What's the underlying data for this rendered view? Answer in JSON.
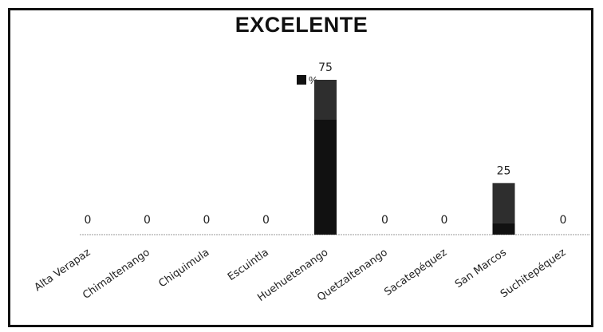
{
  "chart_data": {
    "type": "bar",
    "title": "EXCELENTE",
    "categories": [
      "Alta Verapaz",
      "Chimaltenango",
      "Chiquimula",
      "Escuintla",
      "Huehuetenango",
      "Quetzaltenango",
      "Sacatepéquez",
      "San Marcos",
      "Suchitepéquez"
    ],
    "series": [
      {
        "name": "%",
        "values": [
          0,
          0,
          0,
          0,
          75,
          0,
          0,
          25,
          0
        ]
      }
    ],
    "data_labels": [
      "0",
      "0",
      "0",
      "0",
      "75",
      "0",
      "0",
      "25",
      "0"
    ],
    "ylim": [
      0,
      100
    ],
    "grid": false,
    "legend_position": "top",
    "colors": {
      "bar": "#111111",
      "bar_upper": "#2e2e2e",
      "axis": "#9a9a9a"
    }
  }
}
